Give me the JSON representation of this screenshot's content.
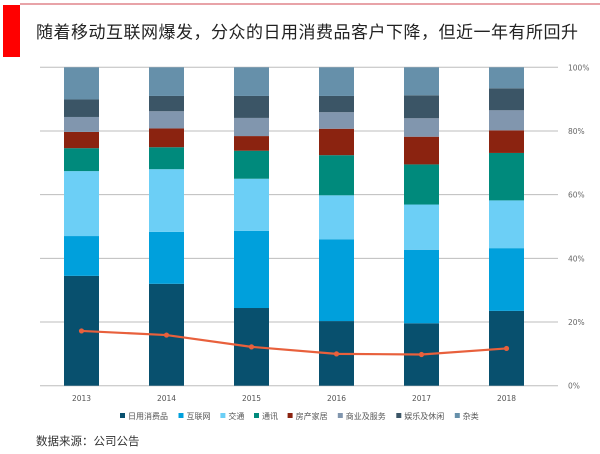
{
  "header": {
    "title": "随着移动互联网爆发，分众的日用消费品客户下降，但近一年有所回升",
    "accent": "#ff0000"
  },
  "source": "数据来源：公司公告",
  "chart_data": {
    "type": "bar",
    "stacked": true,
    "percent": true,
    "categories": [
      "2013",
      "2014",
      "2015",
      "2016",
      "2017",
      "2018"
    ],
    "ylim": [
      0,
      100
    ],
    "yticks": [
      "0%",
      "20%",
      "40%",
      "60%",
      "80%",
      "100%"
    ],
    "yaxis_side": "right",
    "grid": true,
    "legend_position": "bottom",
    "series": [
      {
        "name": "日用消费品",
        "color": "#08506e",
        "values": [
          34.5,
          32.0,
          24.4,
          20.3,
          19.6,
          23.5
        ]
      },
      {
        "name": "互联网",
        "color": "#00a0dc",
        "values": [
          12.5,
          16.3,
          24.2,
          25.7,
          23.1,
          19.7
        ]
      },
      {
        "name": "交通",
        "color": "#6ccff6",
        "values": [
          20.4,
          19.7,
          16.4,
          13.8,
          14.2,
          15.0
        ]
      },
      {
        "name": "通讯",
        "color": "#008a7c",
        "values": [
          7.2,
          6.9,
          8.8,
          12.6,
          12.6,
          14.9
        ]
      },
      {
        "name": "房产家居",
        "color": "#8b2310",
        "values": [
          5.1,
          5.9,
          4.6,
          8.3,
          8.7,
          7.1
        ]
      },
      {
        "name": "商业及服务",
        "color": "#8196ae",
        "values": [
          4.7,
          5.4,
          5.7,
          5.2,
          5.8,
          6.3
        ]
      },
      {
        "name": "娱乐及休闲",
        "color": "#3b5566",
        "values": [
          5.5,
          4.8,
          6.9,
          5.1,
          7.2,
          6.9
        ]
      },
      {
        "name": "杂类",
        "color": "#6690aa",
        "values": [
          10.1,
          9.0,
          9.0,
          9.0,
          8.8,
          6.6
        ]
      }
    ],
    "line": {
      "color": "#e8603c",
      "values": [
        17.2,
        15.9,
        12.2,
        10.0,
        9.8,
        11.7
      ]
    }
  }
}
